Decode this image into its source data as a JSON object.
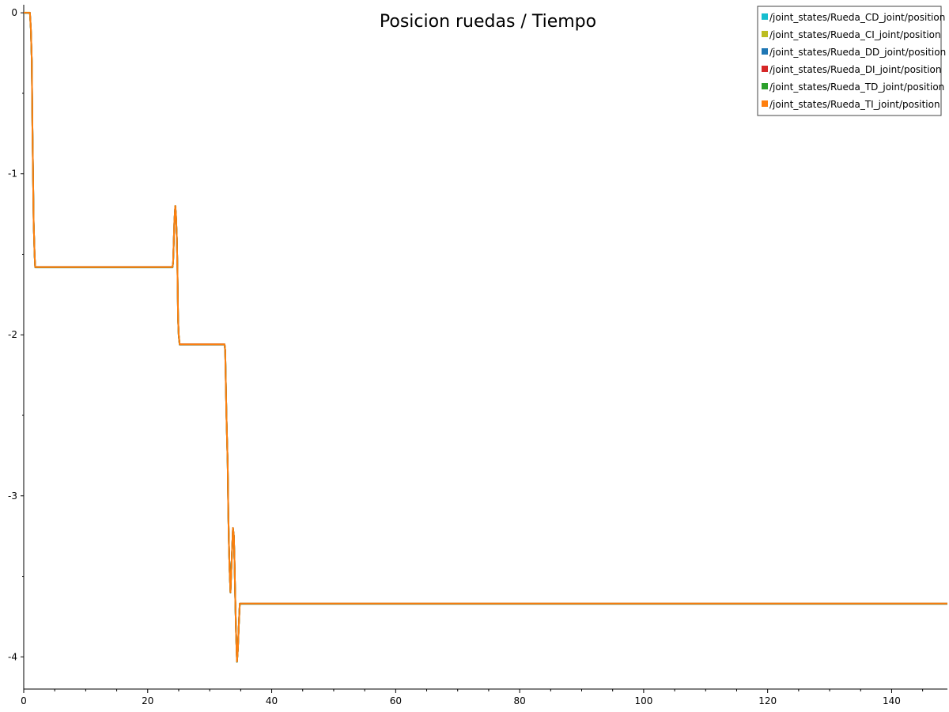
{
  "chart_data": {
    "type": "line",
    "title": "Posicion ruedas / Tiempo",
    "xlabel": "",
    "ylabel": "",
    "xlim": [
      0,
      149
    ],
    "ylim": [
      -4.2,
      0.05
    ],
    "x_ticks": [
      0,
      20,
      40,
      60,
      80,
      100,
      120,
      140
    ],
    "y_ticks": [
      0,
      -1,
      -2,
      -3,
      -4
    ],
    "grid": false,
    "legend_position": "top-right",
    "series": [
      {
        "name": "/joint_states/Rueda_CD_joint/position",
        "color": "#17becf"
      },
      {
        "name": "/joint_states/Rueda_CI_joint/position",
        "color": "#bcbd22"
      },
      {
        "name": "/joint_states/Rueda_DD_joint/position",
        "color": "#1f77b4"
      },
      {
        "name": "/joint_states/Rueda_DI_joint/position",
        "color": "#d62728"
      },
      {
        "name": "/joint_states/Rueda_TD_joint/position",
        "color": "#2ca02c"
      },
      {
        "name": "/joint_states/Rueda_TI_joint/position",
        "color": "#ff7f0e"
      }
    ],
    "points": [
      [
        0.0,
        0.0
      ],
      [
        1.0,
        0.0
      ],
      [
        1.15,
        -0.1
      ],
      [
        1.3,
        -0.3
      ],
      [
        1.4,
        -0.7
      ],
      [
        1.5,
        -1.0
      ],
      [
        1.6,
        -1.3
      ],
      [
        1.75,
        -1.5
      ],
      [
        1.85,
        -1.58
      ],
      [
        24.0,
        -1.58
      ],
      [
        24.1,
        -1.55
      ],
      [
        24.3,
        -1.3
      ],
      [
        24.45,
        -1.2
      ],
      [
        24.55,
        -1.25
      ],
      [
        24.7,
        -1.4
      ],
      [
        24.8,
        -1.6
      ],
      [
        24.9,
        -1.9
      ],
      [
        25.0,
        -2.0
      ],
      [
        25.15,
        -2.06
      ],
      [
        32.4,
        -2.06
      ],
      [
        32.5,
        -2.1
      ],
      [
        32.6,
        -2.3
      ],
      [
        32.7,
        -2.5
      ],
      [
        32.9,
        -2.8
      ],
      [
        33.0,
        -3.1
      ],
      [
        33.1,
        -3.3
      ],
      [
        33.2,
        -3.45
      ],
      [
        33.35,
        -3.6
      ],
      [
        33.5,
        -3.45
      ],
      [
        33.65,
        -3.3
      ],
      [
        33.75,
        -3.2
      ],
      [
        33.9,
        -3.25
      ],
      [
        34.0,
        -3.4
      ],
      [
        34.1,
        -3.6
      ],
      [
        34.25,
        -3.85
      ],
      [
        34.4,
        -4.03
      ],
      [
        34.55,
        -3.95
      ],
      [
        34.7,
        -3.8
      ],
      [
        34.85,
        -3.67
      ],
      [
        149.0,
        -3.67
      ]
    ]
  }
}
